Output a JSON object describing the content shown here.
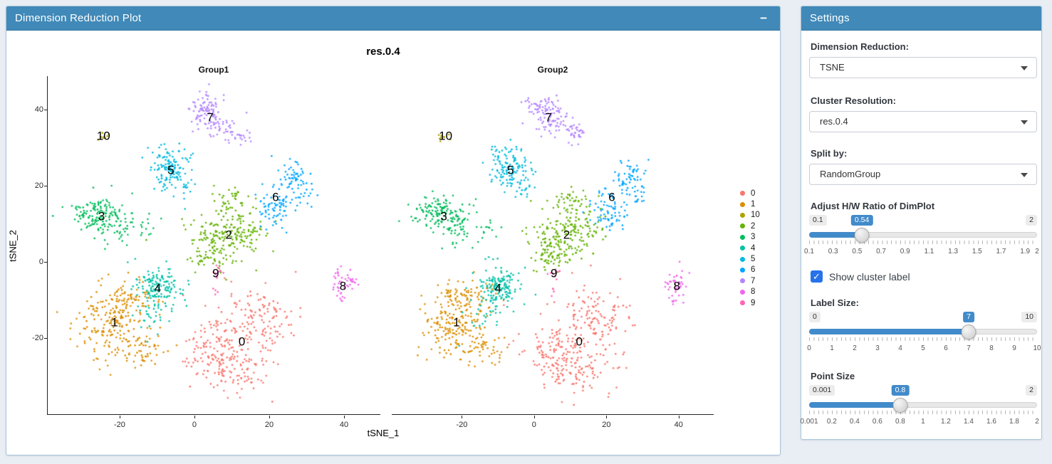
{
  "plot_panel": {
    "title": "Dimension Reduction Plot",
    "minimize_label": "−"
  },
  "settings_panel": {
    "title": "Settings",
    "fields": [
      {
        "label": "Dimension Reduction:",
        "value": "TSNE"
      },
      {
        "label": "Cluster Resolution:",
        "value": "res.0.4"
      },
      {
        "label": "Split by:",
        "value": "RandomGroup"
      }
    ],
    "sliders": [
      {
        "label": "Adjust H/W Ratio of DimPlot",
        "min": 0.1,
        "max": 2,
        "value": 0.54,
        "min_label": "0.1",
        "max_label": "2",
        "value_label": "0.54",
        "tick_labels": [
          {
            "v": 0.1,
            "t": "0.1"
          },
          {
            "v": 0.3,
            "t": "0.3"
          },
          {
            "v": 0.5,
            "t": "0.5"
          },
          {
            "v": 0.7,
            "t": "0.7"
          },
          {
            "v": 0.9,
            "t": "0.9"
          },
          {
            "v": 1.1,
            "t": "1.1"
          },
          {
            "v": 1.3,
            "t": "1.3"
          },
          {
            "v": 1.5,
            "t": "1.5"
          },
          {
            "v": 1.7,
            "t": "1.7"
          },
          {
            "v": 1.9,
            "t": "1.9"
          },
          {
            "v": 2,
            "t": "2"
          }
        ]
      },
      {
        "label": "Label Size:",
        "min": 0,
        "max": 10,
        "value": 7,
        "min_label": "0",
        "max_label": "10",
        "value_label": "7",
        "tick_labels": [
          {
            "v": 0,
            "t": "0"
          },
          {
            "v": 1,
            "t": "1"
          },
          {
            "v": 2,
            "t": "2"
          },
          {
            "v": 3,
            "t": "3"
          },
          {
            "v": 4,
            "t": "4"
          },
          {
            "v": 5,
            "t": "5"
          },
          {
            "v": 6,
            "t": "6"
          },
          {
            "v": 7,
            "t": "7"
          },
          {
            "v": 8,
            "t": "8"
          },
          {
            "v": 9,
            "t": "9"
          },
          {
            "v": 10,
            "t": "10"
          }
        ]
      },
      {
        "label": "Point Size",
        "min": 0.001,
        "max": 2,
        "value": 0.8,
        "min_label": "0.001",
        "max_label": "2",
        "value_label": "0.8",
        "tick_labels": [
          {
            "v": 0.001,
            "t": "0.001"
          },
          {
            "v": 0.2,
            "t": "0.2"
          },
          {
            "v": 0.4,
            "t": "0.4"
          },
          {
            "v": 0.6,
            "t": "0.6"
          },
          {
            "v": 0.8,
            "t": "0.8"
          },
          {
            "v": 1,
            "t": "1"
          },
          {
            "v": 1.2,
            "t": "1.2"
          },
          {
            "v": 1.4,
            "t": "1.4"
          },
          {
            "v": 1.6,
            "t": "1.6"
          },
          {
            "v": 1.8,
            "t": "1.8"
          },
          {
            "v": 2,
            "t": "2"
          }
        ]
      }
    ],
    "checkbox": {
      "label": "Show cluster label",
      "checked": true
    }
  },
  "colors": {
    "header_blue": "#4089B8",
    "accent_blue": "#428BCA",
    "checkbox_blue": "#2572EB"
  },
  "chart_data": {
    "type": "scatter",
    "title": "res.0.4",
    "facet_titles": [
      "Group1",
      "Group2"
    ],
    "xlabel": "tSNE_1",
    "ylabel": "tSNE_2",
    "xlim": [
      -39.4,
      49.7
    ],
    "ylim": [
      -40.3,
      48.8
    ],
    "xticks": [
      -20,
      0,
      20,
      40
    ],
    "yticks": [
      40,
      20,
      0,
      -20
    ],
    "legend_position": "right",
    "legend_order": [
      "0",
      "1",
      "10",
      "2",
      "3",
      "4",
      "5",
      "6",
      "7",
      "8",
      "9"
    ],
    "point_size": 0.8,
    "label_size": 7,
    "clusters": [
      {
        "label": "0",
        "color": "#F8766D",
        "label_pos": [
          12.5,
          -21
        ],
        "blobs": [
          [
            7,
            -24,
            5,
            4.5,
            150
          ],
          [
            17,
            -15,
            4.5,
            4.5,
            120
          ],
          [
            13,
            -29,
            4,
            3,
            45
          ],
          [
            12,
            -19,
            8,
            7,
            25
          ]
        ]
      },
      {
        "label": "1",
        "color": "#DB8E00",
        "label_pos": [
          -21.5,
          -16
        ],
        "blobs": [
          [
            -23,
            -18,
            4,
            4,
            140
          ],
          [
            -19,
            -10,
            3.5,
            3,
            90
          ],
          [
            -14,
            -23,
            3,
            2.5,
            45
          ],
          [
            -20,
            -15,
            7,
            6,
            20
          ]
        ]
      },
      {
        "label": "2",
        "color": "#64B200",
        "label_pos": [
          9,
          7
        ],
        "blobs": [
          [
            4,
            4,
            3,
            3.5,
            100
          ],
          [
            12,
            8,
            3.5,
            3.5,
            110
          ],
          [
            10,
            16,
            2.5,
            2,
            35
          ],
          [
            8,
            8,
            6.5,
            6,
            25
          ]
        ]
      },
      {
        "label": "3",
        "color": "#00BD5C",
        "label_pos": [
          -25,
          12
        ],
        "blobs": [
          [
            -26,
            12.5,
            3.5,
            2.2,
            130
          ],
          [
            -21,
            8.5,
            2.5,
            1.8,
            35
          ],
          [
            -13.5,
            9,
            1.8,
            1.8,
            14
          ],
          [
            -23,
            11,
            5.5,
            4,
            12
          ]
        ]
      },
      {
        "label": "4",
        "color": "#00C1A7",
        "label_pos": [
          -10,
          -7
        ],
        "blobs": [
          [
            -10,
            -7,
            3,
            2.6,
            140
          ],
          [
            -13,
            -14,
            2,
            2.3,
            18
          ],
          [
            -9,
            -8,
            5.5,
            5,
            14
          ]
        ]
      },
      {
        "label": "5",
        "color": "#00BADE",
        "label_pos": [
          -6.5,
          24
        ],
        "blobs": [
          [
            -7,
            24.5,
            2.6,
            2.8,
            125
          ],
          [
            -3.5,
            18.5,
            1.4,
            1.4,
            10
          ],
          [
            -6,
            23,
            4.5,
            4.5,
            10
          ]
        ]
      },
      {
        "label": "6",
        "color": "#00A6FF",
        "label_pos": [
          21.5,
          17
        ],
        "blobs": [
          [
            26,
            22,
            2.2,
            2,
            55
          ],
          [
            21,
            13.5,
            2.2,
            2.4,
            65
          ],
          [
            28.5,
            17,
            1.4,
            1.6,
            14
          ],
          [
            24,
            18,
            4,
            4,
            12
          ]
        ]
      },
      {
        "label": "7",
        "color": "#B385FF",
        "label_pos": [
          4,
          38
        ],
        "blobs": [
          [
            2.5,
            40.5,
            2.4,
            1.9,
            65
          ],
          [
            6,
            36.5,
            2.4,
            1.7,
            45
          ],
          [
            12,
            33.5,
            1.7,
            1.3,
            25
          ],
          [
            5,
            38,
            4.5,
            3.5,
            10
          ]
        ]
      },
      {
        "label": "8",
        "color": "#EF67EB",
        "label_pos": [
          39.5,
          -6.5
        ],
        "blobs": [
          [
            39.5,
            -5.5,
            1.6,
            1.7,
            42
          ],
          [
            39,
            -10,
            0.5,
            1,
            5
          ]
        ]
      },
      {
        "label": "9",
        "color": "#FF63B6",
        "label_pos": [
          5.5,
          -3
        ],
        "blobs": [
          [
            6,
            -3,
            1,
            0.9,
            11
          ],
          [
            5.5,
            -7.5,
            0.4,
            1,
            4
          ]
        ]
      },
      {
        "label": "10",
        "color": "#AEA200",
        "label_pos": [
          -24.5,
          33
        ],
        "blobs": [
          [
            -25,
            32.5,
            0.9,
            0.8,
            9
          ]
        ]
      }
    ]
  }
}
